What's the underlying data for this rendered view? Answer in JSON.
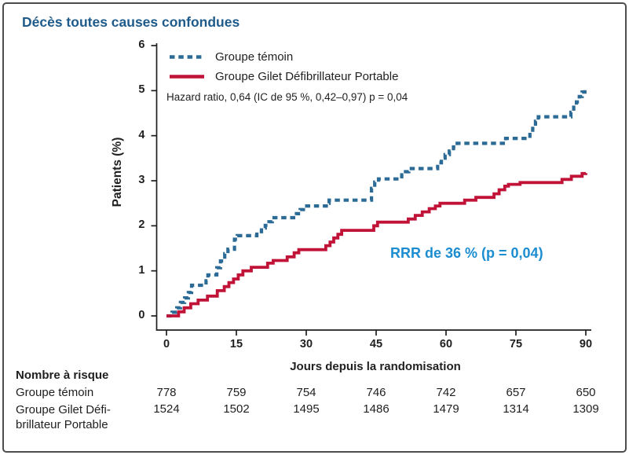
{
  "frame": {
    "border_color": "#4d4d4d",
    "background": "#ffffff"
  },
  "title": {
    "text": "Décès toutes causes confondues",
    "color": "#1e5a8a"
  },
  "legend": {
    "position": "top-left-inside",
    "items": [
      {
        "label": "Groupe témoin",
        "color": "#2b6b96",
        "style": "dashed"
      },
      {
        "label": "Groupe Gilet Défibrillateur Portable",
        "color": "#c11238",
        "style": "solid"
      }
    ]
  },
  "annotations": {
    "hazard_text": "Hazard ratio, 0,64 (IC de 95 %, 0,42–0,97) p = 0,04",
    "rrr": {
      "text": "RRR de 36 % (p = 0,04)",
      "color": "#1b8dd0"
    }
  },
  "chart_data": {
    "type": "line",
    "step": true,
    "title": "Décès toutes causes confondues",
    "xlabel": "Jours depuis la randomisation",
    "ylabel": "Patients (%)",
    "xlim": [
      0,
      90
    ],
    "ylim": [
      0,
      6
    ],
    "xticks": [
      0,
      15,
      30,
      45,
      60,
      75,
      90
    ],
    "yticks": [
      0,
      1,
      2,
      3,
      4,
      5,
      6
    ],
    "grid": false,
    "axis_color": "#1f1f1f",
    "series": [
      {
        "name": "Groupe témoin",
        "color": "#2b6b96",
        "dashed": true,
        "points": [
          [
            0,
            0
          ],
          [
            1.2,
            0.08
          ],
          [
            2.2,
            0.18
          ],
          [
            3,
            0.3
          ],
          [
            3.9,
            0.4
          ],
          [
            4.7,
            0.52
          ],
          [
            5.4,
            0.68
          ],
          [
            8.5,
            0.78
          ],
          [
            8.9,
            0.91
          ],
          [
            10.8,
            1.07
          ],
          [
            11.6,
            1.22
          ],
          [
            12.5,
            1.38
          ],
          [
            13.2,
            1.48
          ],
          [
            14.6,
            1.7
          ],
          [
            15.2,
            1.78
          ],
          [
            19.4,
            1.87
          ],
          [
            20.4,
            1.95
          ],
          [
            21.2,
            2.01
          ],
          [
            22,
            2.09
          ],
          [
            22.7,
            2.18
          ],
          [
            27.9,
            2.27
          ],
          [
            28.7,
            2.36
          ],
          [
            29.4,
            2.44
          ],
          [
            34.3,
            2.5
          ],
          [
            34.9,
            2.57
          ],
          [
            44,
            2.83
          ],
          [
            44.7,
            2.97
          ],
          [
            45.5,
            3.04
          ],
          [
            50.5,
            3.13
          ],
          [
            51.3,
            3.2
          ],
          [
            52,
            3.27
          ],
          [
            58.2,
            3.4
          ],
          [
            59,
            3.5
          ],
          [
            59.8,
            3.58
          ],
          [
            60.7,
            3.66
          ],
          [
            61.6,
            3.75
          ],
          [
            62.4,
            3.83
          ],
          [
            72.8,
            3.94
          ],
          [
            78,
            4.07
          ],
          [
            78.6,
            4.2
          ],
          [
            79.2,
            4.32
          ],
          [
            79.8,
            4.42
          ],
          [
            86.8,
            4.52
          ],
          [
            87.4,
            4.63
          ],
          [
            88,
            4.75
          ],
          [
            88.6,
            4.87
          ],
          [
            89.2,
            4.97
          ],
          [
            89.8,
            5.03
          ],
          [
            90,
            5.03
          ]
        ]
      },
      {
        "name": "Groupe Gilet Défibrillateur Portable",
        "color": "#c11238",
        "dashed": false,
        "points": [
          [
            0,
            0
          ],
          [
            2.6,
            0.09
          ],
          [
            3.8,
            0.18
          ],
          [
            5.2,
            0.27
          ],
          [
            6.8,
            0.35
          ],
          [
            8.8,
            0.44
          ],
          [
            10.9,
            0.56
          ],
          [
            12.4,
            0.65
          ],
          [
            13.4,
            0.74
          ],
          [
            14.4,
            0.82
          ],
          [
            15.4,
            0.91
          ],
          [
            16.4,
            1.0
          ],
          [
            18.2,
            1.08
          ],
          [
            21.7,
            1.17
          ],
          [
            22.9,
            1.23
          ],
          [
            25.9,
            1.31
          ],
          [
            27.4,
            1.4
          ],
          [
            28.4,
            1.47
          ],
          [
            34.2,
            1.56
          ],
          [
            35.1,
            1.64
          ],
          [
            35.9,
            1.73
          ],
          [
            36.8,
            1.81
          ],
          [
            37.6,
            1.9
          ],
          [
            44.5,
            2.0
          ],
          [
            45.3,
            2.08
          ],
          [
            51.9,
            2.15
          ],
          [
            53.4,
            2.23
          ],
          [
            54.9,
            2.31
          ],
          [
            56.4,
            2.38
          ],
          [
            57.7,
            2.44
          ],
          [
            58.7,
            2.5
          ],
          [
            64,
            2.57
          ],
          [
            66.4,
            2.63
          ],
          [
            70.3,
            2.71
          ],
          [
            71.4,
            2.8
          ],
          [
            72.6,
            2.88
          ],
          [
            73.4,
            2.92
          ],
          [
            75.9,
            2.96
          ],
          [
            84.9,
            3.03
          ],
          [
            86.9,
            3.1
          ],
          [
            89.2,
            3.16
          ],
          [
            90,
            3.17
          ]
        ]
      }
    ]
  },
  "risk_table": {
    "heading": "Nombre à risque",
    "rows": [
      {
        "label": "Groupe témoin",
        "values": [
          "778",
          "759",
          "754",
          "746",
          "742",
          "657",
          "650"
        ]
      },
      {
        "label": "Groupe Gilet Défi-\nbrillateur Portable",
        "values": [
          "1524",
          "1502",
          "1495",
          "1486",
          "1479",
          "1314",
          "1309"
        ]
      }
    ]
  }
}
